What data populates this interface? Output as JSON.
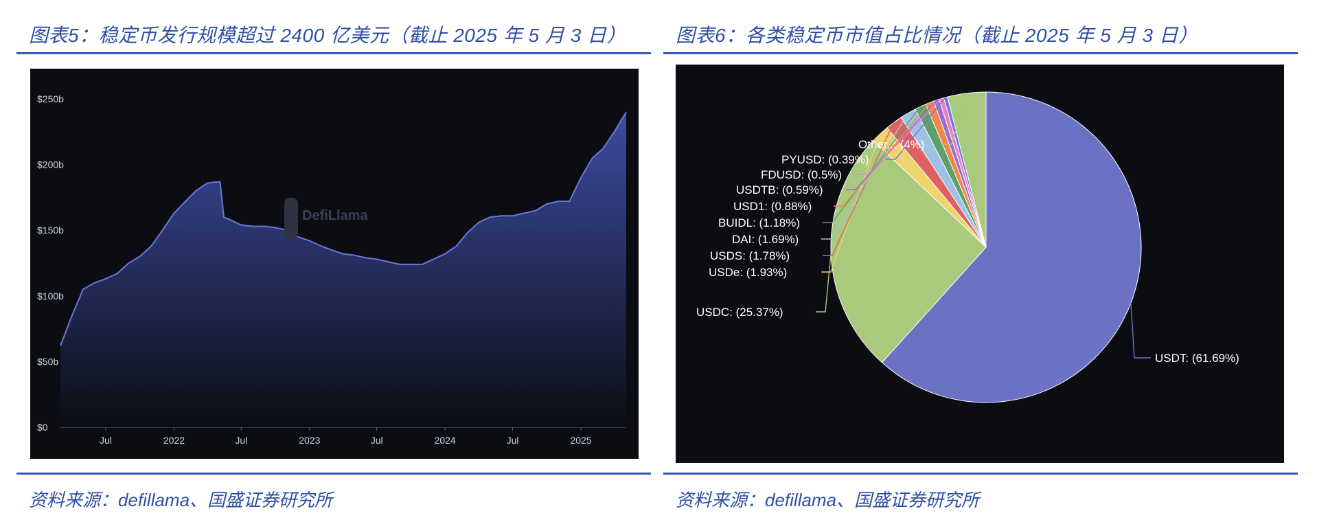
{
  "left": {
    "title": "图表5：稳定币发行规模超过 2400 亿美元（截止 2025 年 5 月 3 日）",
    "source": "资料来源：defillama、国盛证券研究所"
  },
  "right": {
    "title": "图表6：各类稳定币市值占比情况（截止 2025 年 5 月 3 日）",
    "source": "资料来源：defillama、国盛证券研究所"
  },
  "chart_data": [
    {
      "type": "area",
      "title": "",
      "watermark": "DefiLlama",
      "ylim": [
        0,
        250
      ],
      "y_ticks": [
        "$0",
        "$50b",
        "$100b",
        "$150b",
        "$200b",
        "$250b"
      ],
      "x_ticks": [
        "Jul",
        "2022",
        "Jul",
        "2023",
        "Jul",
        "2024",
        "Jul",
        "2025"
      ],
      "x_range": [
        "2021-03-01",
        "2025-05-03"
      ],
      "color": "#3f4ea8",
      "series": [
        {
          "x": [
            "2021-03-01",
            "2021-04-01",
            "2021-05-01",
            "2021-06-01",
            "2021-07-01",
            "2021-08-01",
            "2021-09-01",
            "2021-10-01",
            "2021-11-01",
            "2021-12-01",
            "2022-01-01",
            "2022-02-01",
            "2022-03-01",
            "2022-04-01",
            "2022-05-05",
            "2022-05-15",
            "2022-06-01",
            "2022-07-01",
            "2022-08-01",
            "2022-09-01",
            "2022-10-01",
            "2022-11-01",
            "2022-12-01",
            "2023-01-01",
            "2023-02-01",
            "2023-03-01",
            "2023-04-01",
            "2023-05-01",
            "2023-06-01",
            "2023-07-01",
            "2023-08-01",
            "2023-09-01",
            "2023-10-01",
            "2023-11-01",
            "2023-12-01",
            "2024-01-01",
            "2024-02-01",
            "2024-03-01",
            "2024-04-01",
            "2024-05-01",
            "2024-06-01",
            "2024-07-01",
            "2024-08-01",
            "2024-09-01",
            "2024-10-01",
            "2024-11-01",
            "2024-12-01",
            "2025-01-01",
            "2025-02-01",
            "2025-03-01",
            "2025-04-01",
            "2025-05-03"
          ],
          "values": [
            62,
            85,
            105,
            110,
            113,
            117,
            125,
            130,
            138,
            150,
            163,
            172,
            180,
            186,
            187,
            160,
            158,
            154,
            153,
            153,
            152,
            150,
            145,
            142,
            138,
            135,
            132,
            131,
            129,
            128,
            126,
            124,
            124,
            124,
            128,
            132,
            138,
            148,
            156,
            160,
            161,
            161,
            163,
            165,
            170,
            172,
            172,
            190,
            205,
            212,
            225,
            240
          ]
        }
      ]
    },
    {
      "type": "pie",
      "title": "",
      "slices": [
        {
          "label": "USDT",
          "value": 61.69,
          "display": "USDT: (61.69%)",
          "color": "#6b72c4"
        },
        {
          "label": "USDC",
          "value": 25.37,
          "display": "USDC: (25.37%)",
          "color": "#a9c97d"
        },
        {
          "label": "USDe",
          "value": 1.93,
          "display": "USDe: (1.93%)",
          "color": "#efd46d"
        },
        {
          "label": "USDS",
          "value": 1.78,
          "display": "USDS: (1.78%)",
          "color": "#dc6262"
        },
        {
          "label": "DAI",
          "value": 1.69,
          "display": "DAI: (1.69%)",
          "color": "#9fc1e4"
        },
        {
          "label": "BUIDL",
          "value": 1.18,
          "display": "BUIDL: (1.18%)",
          "color": "#5ea06b"
        },
        {
          "label": "USD1",
          "value": 0.88,
          "display": "USD1: (0.88%)",
          "color": "#f0884a"
        },
        {
          "label": "USDTB",
          "value": 0.59,
          "display": "USDTB: (0.59%)",
          "color": "#9a6ed0"
        },
        {
          "label": "FDUSD",
          "value": 0.5,
          "display": "FDUSD: (0.5%)",
          "color": "#e87fc6"
        },
        {
          "label": "PYUSD",
          "value": 0.39,
          "display": "PYUSD: (0.39%)",
          "color": "#6f78d6"
        },
        {
          "label": "Other..",
          "value": 4,
          "display": "Other..: (4%)",
          "color": "#a9c97d"
        }
      ]
    }
  ]
}
